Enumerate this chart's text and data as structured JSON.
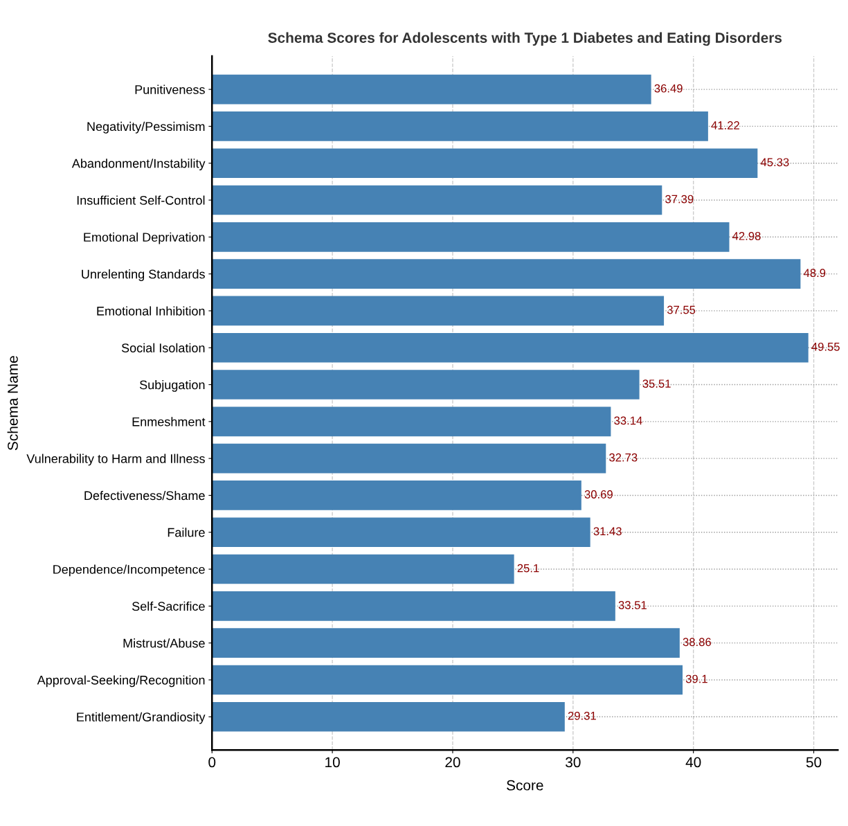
{
  "chart_data": {
    "type": "bar",
    "orientation": "horizontal",
    "title": "Schema Scores for Adolescents with Type 1 Diabetes and Eating Disorders",
    "xlabel": "Score",
    "ylabel": "Schema Name",
    "categories": [
      "Punitiveness",
      "Negativity/Pessimism",
      "Abandonment/Instability",
      "Insufficient Self-Control",
      "Emotional Deprivation",
      "Unrelenting Standards",
      "Emotional Inhibition",
      "Social Isolation",
      "Subjugation",
      "Enmeshment",
      "Vulnerability to Harm and Illness",
      "Defectiveness/Shame",
      "Failure",
      "Dependence/Incompetence",
      "Self-Sacrifice",
      "Mistrust/Abuse",
      "Approval-Seeking/Recognition",
      "Entitlement/Grandiosity"
    ],
    "values": [
      36.49,
      41.22,
      45.33,
      37.39,
      42.98,
      48.9,
      37.55,
      49.55,
      35.51,
      33.14,
      32.73,
      30.69,
      31.43,
      25.1,
      33.51,
      38.86,
      39.1,
      29.31
    ],
    "color": "#4682b4",
    "data_labels": true,
    "xlim": [
      0,
      52
    ],
    "xticks": [
      0,
      10,
      20,
      30,
      40,
      50
    ],
    "grid": true,
    "legend": false
  }
}
